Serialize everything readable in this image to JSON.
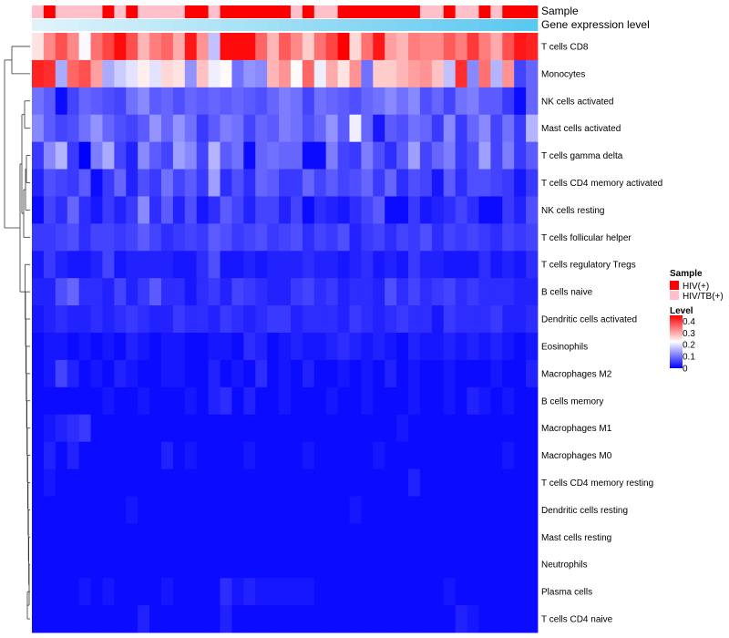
{
  "chart_data": {
    "type": "heatmap",
    "title": "",
    "annotation_rows": [
      {
        "label": "Sample"
      },
      {
        "label": "Gene expression level"
      }
    ],
    "sample_groups": [
      "HIV/TB(+)",
      "HIV(+)",
      "HIV/TB(+)",
      "HIV/TB(+)",
      "HIV/TB(+)",
      "HIV/TB(+)",
      "HIV(+)",
      "HIV/TB(+)",
      "HIV(+)",
      "HIV/TB(+)",
      "HIV/TB(+)",
      "HIV/TB(+)",
      "HIV/TB(+)",
      "HIV(+)",
      "HIV(+)",
      "HIV/TB(+)",
      "HIV(+)",
      "HIV(+)",
      "HIV(+)",
      "HIV(+)",
      "HIV(+)",
      "HIV(+)",
      "HIV/TB(+)",
      "HIV(+)",
      "HIV/TB(+)",
      "HIV/TB(+)",
      "HIV(+)",
      "HIV(+)",
      "HIV(+)",
      "HIV(+)",
      "HIV(+)",
      "HIV(+)",
      "HIV(+)",
      "HIV/TB(+)",
      "HIV/TB(+)",
      "HIV(+)",
      "HIV/TB(+)",
      "HIV/TB(+)",
      "HIV(+)",
      "HIV/TB(+)",
      "HIV(+)",
      "HIV(+)",
      "HIV(+)"
    ],
    "rows": [
      {
        "name": "T cells CD8",
        "values": [
          0.25,
          0.33,
          0.38,
          0.33,
          0.22,
          0.35,
          0.39,
          0.44,
          0.38,
          0.29,
          0.34,
          0.36,
          0.3,
          0.43,
          0.32,
          0.17,
          0.44,
          0.44,
          0.44,
          0.36,
          0.29,
          0.37,
          0.33,
          0.27,
          0.35,
          0.39,
          0.45,
          0.26,
          0.35,
          0.43,
          0.31,
          0.29,
          0.34,
          0.33,
          0.33,
          0.37,
          0.34,
          0.4,
          0.34,
          0.3,
          0.38,
          0.43,
          0.42
        ]
      },
      {
        "name": "Monocytes",
        "values": [
          0.42,
          0.41,
          0.15,
          0.36,
          0.38,
          0.31,
          0.15,
          0.18,
          0.2,
          0.24,
          0.2,
          0.26,
          0.25,
          0.13,
          0.28,
          0.21,
          0.23,
          0.1,
          0.13,
          0.12,
          0.29,
          0.32,
          0.23,
          0.36,
          0.21,
          0.3,
          0.25,
          0.32,
          0.1,
          0.27,
          0.27,
          0.29,
          0.31,
          0.32,
          0.28,
          0.17,
          0.41,
          0.12,
          0.35,
          0.16,
          0.32,
          0.06,
          0.09
        ]
      },
      {
        "name": "NK cells activated",
        "values": [
          0.1,
          0.08,
          0.01,
          0.06,
          0.09,
          0.08,
          0.07,
          0.06,
          0.1,
          0.12,
          0.08,
          0.09,
          0.07,
          0.09,
          0.08,
          0.09,
          0.08,
          0.09,
          0.08,
          0.07,
          0.09,
          0.11,
          0.1,
          0.06,
          0.1,
          0.09,
          0.08,
          0.07,
          0.09,
          0.1,
          0.12,
          0.1,
          0.12,
          0.07,
          0.09,
          0.06,
          0.1,
          0.11,
          0.08,
          0.08,
          0.05,
          0.01,
          0.09
        ]
      },
      {
        "name": "Mast cells activated",
        "values": [
          0.12,
          0.08,
          0.06,
          0.07,
          0.1,
          0.13,
          0.09,
          0.07,
          0.06,
          0.08,
          0.13,
          0.09,
          0.13,
          0.1,
          0.05,
          0.08,
          0.11,
          0.1,
          0.06,
          0.09,
          0.08,
          0.11,
          0.1,
          0.07,
          0.09,
          0.13,
          0.08,
          0.21,
          0.09,
          0.02,
          0.08,
          0.07,
          0.1,
          0.09,
          0.05,
          0.12,
          0.05,
          0.09,
          0.12,
          0.06,
          0.1,
          0.05,
          0.16
        ]
      },
      {
        "name": "T cells gamma delta",
        "values": [
          0.05,
          0.12,
          0.16,
          0.05,
          0.0,
          0.11,
          0.15,
          0.06,
          0.03,
          0.12,
          0.08,
          0.06,
          0.14,
          0.12,
          0.06,
          0.16,
          0.08,
          0.1,
          0.01,
          0.09,
          0.1,
          0.09,
          0.09,
          0.01,
          0.01,
          0.11,
          0.06,
          0.05,
          0.11,
          0.07,
          0.04,
          0.08,
          0.14,
          0.06,
          0.09,
          0.11,
          0.05,
          0.07,
          0.14,
          0.06,
          0.11,
          0.05,
          0.08
        ]
      },
      {
        "name": "T cells CD4 memory activated",
        "values": [
          0.03,
          0.07,
          0.06,
          0.05,
          0.08,
          0.01,
          0.05,
          0.09,
          0.03,
          0.07,
          0.05,
          0.1,
          0.06,
          0.08,
          0.05,
          0.14,
          0.04,
          0.07,
          0.04,
          0.09,
          0.08,
          0.05,
          0.05,
          0.09,
          0.06,
          0.08,
          0.06,
          0.07,
          0.09,
          0.05,
          0.09,
          0.04,
          0.07,
          0.06,
          0.02,
          0.08,
          0.04,
          0.07,
          0.07,
          0.06,
          0.05,
          0.02,
          0.05
        ]
      },
      {
        "name": "NK cells resting",
        "values": [
          0.01,
          0.06,
          0.04,
          0.09,
          0.04,
          0.02,
          0.05,
          0.03,
          0.05,
          0.12,
          0.04,
          0.08,
          0.03,
          0.07,
          0.02,
          0.04,
          0.08,
          0.06,
          0.03,
          0.06,
          0.06,
          0.03,
          0.06,
          0.01,
          0.04,
          0.03,
          0.02,
          0.04,
          0.06,
          0.08,
          0.01,
          0.01,
          0.05,
          0.02,
          0.03,
          0.04,
          0.06,
          0.04,
          0.01,
          0.01,
          0.05,
          0.03,
          0.07
        ]
      },
      {
        "name": "T cells follicular helper",
        "values": [
          0.05,
          0.05,
          0.06,
          0.07,
          0.04,
          0.06,
          0.06,
          0.05,
          0.06,
          0.08,
          0.06,
          0.04,
          0.05,
          0.06,
          0.05,
          0.08,
          0.07,
          0.05,
          0.06,
          0.07,
          0.05,
          0.06,
          0.07,
          0.04,
          0.06,
          0.05,
          0.07,
          0.03,
          0.05,
          0.06,
          0.04,
          0.06,
          0.05,
          0.07,
          0.04,
          0.06,
          0.05,
          0.06,
          0.05,
          0.04,
          0.06,
          0.05,
          0.06
        ]
      },
      {
        "name": "T cells regulatory  Tregs",
        "values": [
          0.02,
          0.05,
          0.03,
          0.02,
          0.02,
          0.03,
          0.06,
          0.02,
          0.03,
          0.03,
          0.03,
          0.03,
          0.02,
          0.02,
          0.04,
          0.07,
          0.02,
          0.02,
          0.03,
          0.02,
          0.03,
          0.03,
          0.03,
          0.04,
          0.03,
          0.03,
          0.02,
          0.03,
          0.04,
          0.02,
          0.03,
          0.02,
          0.05,
          0.03,
          0.03,
          0.02,
          0.02,
          0.02,
          0.04,
          0.02,
          0.03,
          0.02,
          0.04
        ]
      },
      {
        "name": "B cells naive",
        "values": [
          0.03,
          0.03,
          0.07,
          0.09,
          0.04,
          0.04,
          0.03,
          0.06,
          0.03,
          0.05,
          0.08,
          0.04,
          0.04,
          0.02,
          0.04,
          0.05,
          0.03,
          0.06,
          0.05,
          0.04,
          0.03,
          0.03,
          0.05,
          0.06,
          0.04,
          0.05,
          0.03,
          0.04,
          0.04,
          0.03,
          0.07,
          0.04,
          0.06,
          0.04,
          0.05,
          0.06,
          0.04,
          0.05,
          0.04,
          0.04,
          0.04,
          0.03,
          0.03
        ]
      },
      {
        "name": "Dendritic cells activated",
        "values": [
          0.02,
          0.03,
          0.04,
          0.03,
          0.03,
          0.04,
          0.03,
          0.04,
          0.05,
          0.04,
          0.03,
          0.03,
          0.05,
          0.04,
          0.04,
          0.03,
          0.05,
          0.04,
          0.03,
          0.04,
          0.05,
          0.05,
          0.03,
          0.04,
          0.04,
          0.04,
          0.03,
          0.05,
          0.04,
          0.03,
          0.04,
          0.05,
          0.04,
          0.04,
          0.02,
          0.05,
          0.04,
          0.04,
          0.04,
          0.05,
          0.03,
          0.03,
          0.04
        ]
      },
      {
        "name": "Eosinophils",
        "values": [
          0.01,
          0.02,
          0.02,
          0.01,
          0.02,
          0.01,
          0.02,
          0.01,
          0.03,
          0.02,
          0.01,
          0.02,
          0.02,
          0.01,
          0.01,
          0.02,
          0.02,
          0.01,
          0.04,
          0.03,
          0.01,
          0.02,
          0.03,
          0.02,
          0.02,
          0.03,
          0.04,
          0.03,
          0.02,
          0.03,
          0.02,
          0.01,
          0.03,
          0.02,
          0.02,
          0.03,
          0.02,
          0.03,
          0.02,
          0.03,
          0.02,
          0.01,
          0.02
        ]
      },
      {
        "name": "Macrophages M2",
        "values": [
          0.01,
          0.02,
          0.06,
          0.03,
          0.01,
          0.02,
          0.01,
          0.03,
          0.02,
          0.01,
          0.01,
          0.02,
          0.02,
          0.01,
          0.01,
          0.03,
          0.01,
          0.02,
          0.01,
          0.04,
          0.01,
          0.02,
          0.01,
          0.03,
          0.01,
          0.01,
          0.02,
          0.01,
          0.02,
          0.01,
          0.03,
          0.01,
          0.02,
          0.01,
          0.01,
          0.02,
          0.01,
          0.01,
          0.01,
          0.02,
          0.01,
          0.01,
          0.03
        ]
      },
      {
        "name": "B cells memory",
        "values": [
          0.01,
          0.01,
          0.01,
          0.01,
          0.01,
          0.01,
          0.02,
          0.01,
          0.01,
          0.02,
          0.01,
          0.01,
          0.01,
          0.02,
          0.01,
          0.03,
          0.04,
          0.01,
          0.03,
          0.01,
          0.01,
          0.02,
          0.01,
          0.01,
          0.01,
          0.02,
          0.01,
          0.01,
          0.02,
          0.01,
          0.01,
          0.01,
          0.02,
          0.01,
          0.01,
          0.02,
          0.01,
          0.03,
          0.02,
          0.01,
          0.02,
          0.01,
          0.01
        ]
      },
      {
        "name": "Macrophages M1",
        "values": [
          0.01,
          0.02,
          0.03,
          0.04,
          0.05,
          0.01,
          0.01,
          0.01,
          0.01,
          0.01,
          0.01,
          0.01,
          0.01,
          0.01,
          0.01,
          0.01,
          0.01,
          0.01,
          0.01,
          0.01,
          0.01,
          0.01,
          0.01,
          0.01,
          0.01,
          0.01,
          0.01,
          0.01,
          0.01,
          0.01,
          0.01,
          0.02,
          0.01,
          0.01,
          0.01,
          0.01,
          0.01,
          0.01,
          0.01,
          0.01,
          0.01,
          0.01,
          0.01
        ]
      },
      {
        "name": "Macrophages M0",
        "values": [
          0.01,
          0.03,
          0.01,
          0.03,
          0.01,
          0.01,
          0.01,
          0.01,
          0.01,
          0.01,
          0.01,
          0.03,
          0.01,
          0.02,
          0.01,
          0.01,
          0.01,
          0.01,
          0.02,
          0.01,
          0.01,
          0.01,
          0.01,
          0.02,
          0.01,
          0.01,
          0.01,
          0.01,
          0.01,
          0.02,
          0.01,
          0.01,
          0.01,
          0.01,
          0.01,
          0.01,
          0.01,
          0.01,
          0.01,
          0.01,
          0.02,
          0.01,
          0.01
        ]
      },
      {
        "name": "T cells CD4 memory resting",
        "values": [
          0.01,
          0.02,
          0.01,
          0.01,
          0.01,
          0.01,
          0.01,
          0.01,
          0.01,
          0.01,
          0.01,
          0.01,
          0.01,
          0.01,
          0.01,
          0.01,
          0.01,
          0.01,
          0.01,
          0.01,
          0.01,
          0.01,
          0.01,
          0.01,
          0.01,
          0.01,
          0.01,
          0.01,
          0.01,
          0.01,
          0.01,
          0.01,
          0.03,
          0.01,
          0.01,
          0.01,
          0.01,
          0.01,
          0.01,
          0.01,
          0.01,
          0.01,
          0.01
        ]
      },
      {
        "name": "Dendritic cells resting",
        "values": [
          0.01,
          0.01,
          0.01,
          0.01,
          0.01,
          0.01,
          0.01,
          0.01,
          0.02,
          0.01,
          0.01,
          0.01,
          0.01,
          0.01,
          0.01,
          0.01,
          0.01,
          0.01,
          0.01,
          0.01,
          0.01,
          0.01,
          0.01,
          0.01,
          0.01,
          0.01,
          0.01,
          0.02,
          0.01,
          0.01,
          0.01,
          0.01,
          0.01,
          0.01,
          0.01,
          0.01,
          0.01,
          0.01,
          0.01,
          0.01,
          0.01,
          0.01,
          0.01
        ]
      },
      {
        "name": "Mast cells resting",
        "values": [
          0.01,
          0.01,
          0.01,
          0.01,
          0.01,
          0.01,
          0.01,
          0.01,
          0.01,
          0.01,
          0.01,
          0.01,
          0.01,
          0.01,
          0.01,
          0.01,
          0.01,
          0.01,
          0.01,
          0.01,
          0.01,
          0.01,
          0.01,
          0.01,
          0.01,
          0.01,
          0.01,
          0.01,
          0.01,
          0.01,
          0.01,
          0.01,
          0.01,
          0.01,
          0.01,
          0.01,
          0.01,
          0.01,
          0.01,
          0.01,
          0.01,
          0.01,
          0.01
        ]
      },
      {
        "name": "Neutrophils",
        "values": [
          0.01,
          0.01,
          0.01,
          0.01,
          0.01,
          0.01,
          0.01,
          0.01,
          0.01,
          0.01,
          0.01,
          0.01,
          0.01,
          0.01,
          0.01,
          0.01,
          0.01,
          0.01,
          0.01,
          0.01,
          0.01,
          0.01,
          0.01,
          0.01,
          0.01,
          0.01,
          0.01,
          0.01,
          0.01,
          0.01,
          0.01,
          0.01,
          0.01,
          0.01,
          0.01,
          0.01,
          0.01,
          0.01,
          0.01,
          0.01,
          0.01,
          0.01,
          0.01
        ]
      },
      {
        "name": "Plasma cells",
        "values": [
          0.01,
          0.01,
          0.01,
          0.01,
          0.02,
          0.01,
          0.02,
          0.01,
          0.01,
          0.01,
          0.01,
          0.02,
          0.01,
          0.01,
          0.01,
          0.01,
          0.04,
          0.02,
          0.03,
          0.02,
          0.02,
          0.02,
          0.02,
          0.02,
          0.01,
          0.01,
          0.01,
          0.01,
          0.01,
          0.01,
          0.01,
          0.01,
          0.01,
          0.01,
          0.01,
          0.02,
          0.01,
          0.01,
          0.01,
          0.01,
          0.01,
          0.01,
          0.01
        ]
      },
      {
        "name": "T cells CD4 naive",
        "values": [
          0.01,
          0.01,
          0.01,
          0.01,
          0.01,
          0.01,
          0.01,
          0.01,
          0.01,
          0.03,
          0.01,
          0.01,
          0.01,
          0.01,
          0.01,
          0.01,
          0.03,
          0.01,
          0.01,
          0.01,
          0.01,
          0.01,
          0.01,
          0.01,
          0.01,
          0.01,
          0.01,
          0.01,
          0.01,
          0.01,
          0.01,
          0.01,
          0.01,
          0.01,
          0.01,
          0.01,
          0.03,
          0.02,
          0.01,
          0.01,
          0.01,
          0.01,
          0.01
        ]
      }
    ],
    "legend": {
      "sample": {
        "title": "Sample",
        "entries": [
          {
            "label": "HIV(+)",
            "color": "#ff0000"
          },
          {
            "label": "HIV/TB(+)",
            "color": "#ffc0cb"
          }
        ]
      },
      "level": {
        "title": "Level",
        "ticks": [
          "0.4",
          "0.3",
          "0.2",
          "0.1",
          "0"
        ],
        "tick_values": [
          0.4,
          0.3,
          0.2,
          0.1,
          0
        ],
        "range": [
          0,
          0.45
        ],
        "colors": [
          "#0000ff",
          "#ffffff",
          "#ff0000"
        ]
      }
    },
    "gene_expression_color_start": "#e0f3fb",
    "gene_expression_color_end": "#5bc8ef"
  }
}
